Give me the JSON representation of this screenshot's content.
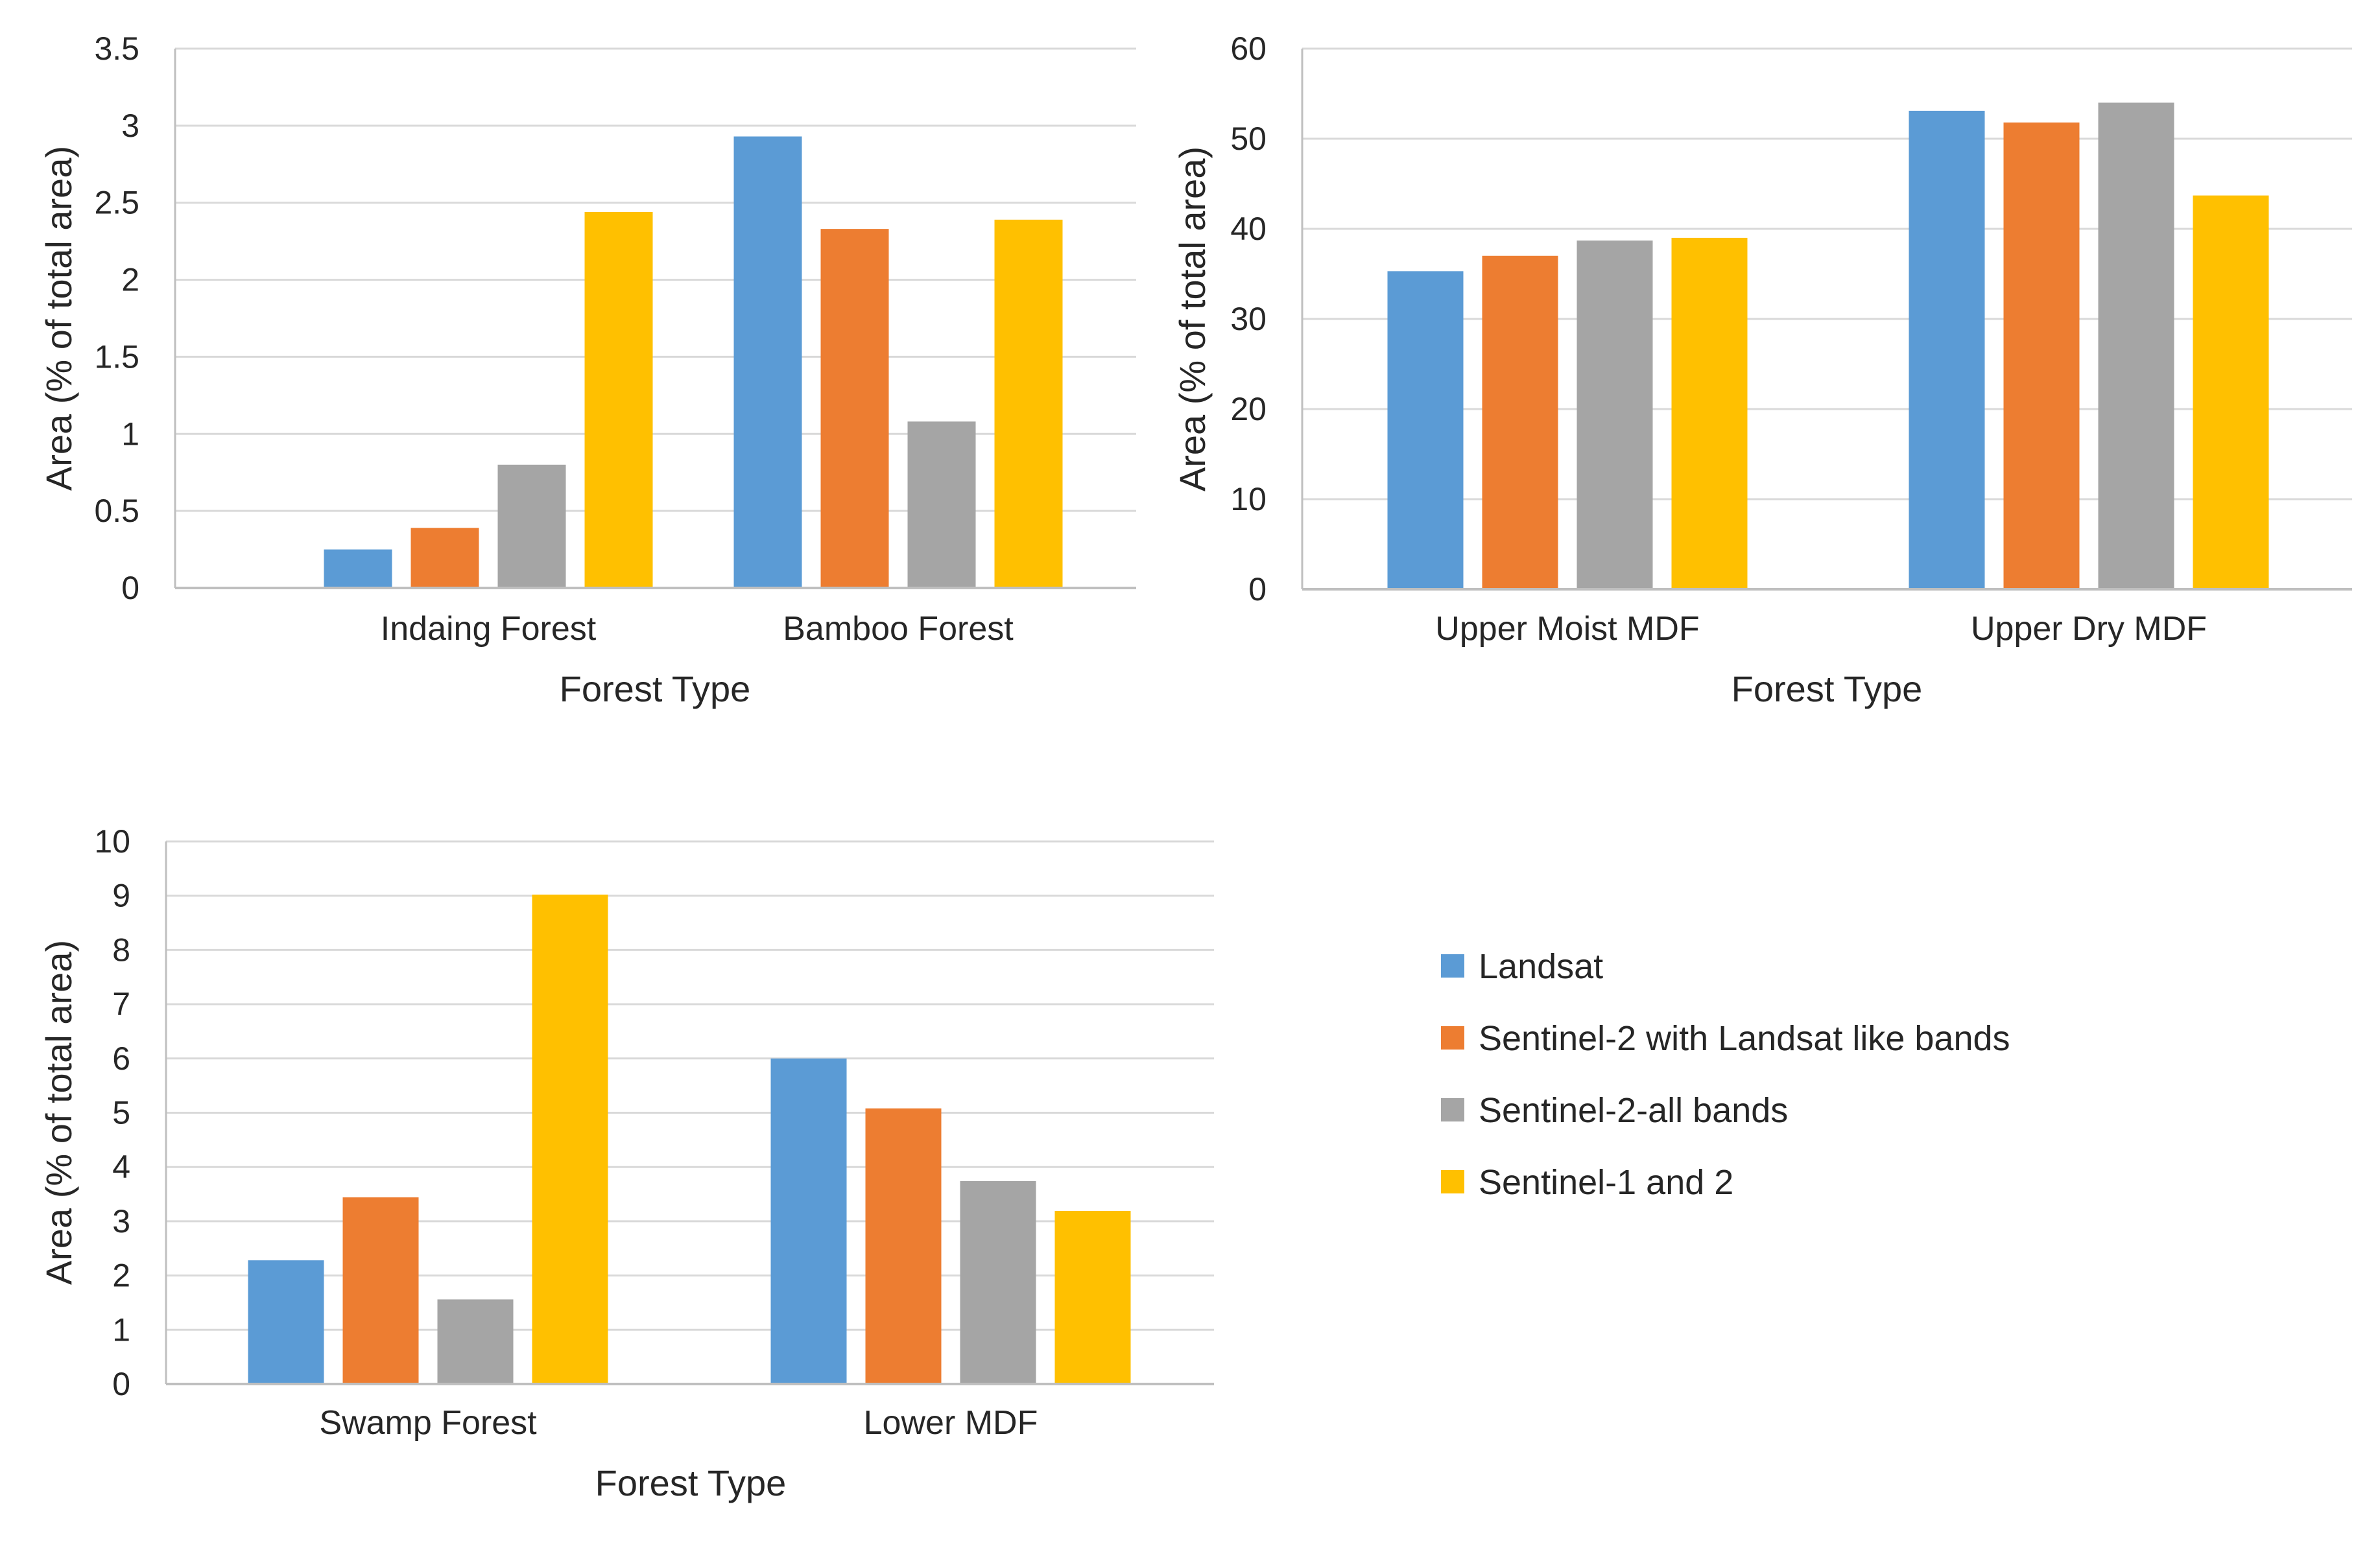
{
  "colors": {
    "Landsat": "#5b9bd5",
    "Sentinel-2 with Landsat like bands": "#ed7d31",
    "Sentinel-2-all bands": "#a5a5a5",
    "Sentinel-1 and 2": "#ffc000",
    "grid": "#d9d9d9",
    "axis": "#bfbfbf"
  },
  "legend": {
    "items": [
      {
        "label": "Landsat",
        "color": "#5b9bd5"
      },
      {
        "label": "Sentinel-2 with Landsat like bands",
        "color": "#ed7d31"
      },
      {
        "label": "Sentinel-2-all bands",
        "color": "#a5a5a5"
      },
      {
        "label": "Sentinel-1 and 2",
        "color": "#ffc000"
      }
    ]
  },
  "chart_data": [
    {
      "type": "bar",
      "categories": [
        "Indaing Forest",
        "Bamboo Forest"
      ],
      "series": [
        {
          "name": "Landsat",
          "values": [
            0.25,
            2.93
          ]
        },
        {
          "name": "Sentinel-2 with Landsat like bands",
          "values": [
            0.39,
            2.33
          ]
        },
        {
          "name": "Sentinel-2-all bands",
          "values": [
            0.8,
            1.08
          ]
        },
        {
          "name": "Sentinel-1 and 2",
          "values": [
            2.44,
            2.39
          ]
        }
      ],
      "xlabel": "Forest Type",
      "ylabel": "Area (% of total area)",
      "ylim": [
        0,
        3.5
      ],
      "yticks": [
        "0",
        "0.5",
        "1",
        "1.5",
        "2",
        "2.5",
        "3",
        "3.5"
      ],
      "grid": true
    },
    {
      "type": "bar",
      "categories": [
        "Upper Moist MDF",
        "Upper Dry MDF"
      ],
      "series": [
        {
          "name": "Landsat",
          "values": [
            35.3,
            53.1
          ]
        },
        {
          "name": "Sentinel-2 with Landsat like bands",
          "values": [
            37.0,
            51.8
          ]
        },
        {
          "name": "Sentinel-2-all bands",
          "values": [
            38.7,
            54.0
          ]
        },
        {
          "name": "Sentinel-1 and 2",
          "values": [
            39.0,
            43.7
          ]
        }
      ],
      "xlabel": "Forest Type",
      "ylabel": "Area (% of total area)",
      "ylim": [
        0,
        60
      ],
      "yticks": [
        "0",
        "10",
        "20",
        "30",
        "40",
        "50",
        "60"
      ],
      "grid": true
    },
    {
      "type": "bar",
      "categories": [
        "Swamp Forest",
        "Lower MDF"
      ],
      "series": [
        {
          "name": "Landsat",
          "values": [
            2.28,
            6.0
          ]
        },
        {
          "name": "Sentinel-2 with Landsat like bands",
          "values": [
            3.44,
            5.08
          ]
        },
        {
          "name": "Sentinel-2-all bands",
          "values": [
            1.56,
            3.74
          ]
        },
        {
          "name": "Sentinel-1 and 2",
          "values": [
            9.02,
            3.19
          ]
        }
      ],
      "xlabel": "Forest Type",
      "ylabel": "Area (% of total area)",
      "ylim": [
        0,
        10
      ],
      "yticks": [
        "0",
        "1",
        "2",
        "3",
        "4",
        "5",
        "6",
        "7",
        "8",
        "9",
        "10"
      ],
      "grid": true
    }
  ]
}
